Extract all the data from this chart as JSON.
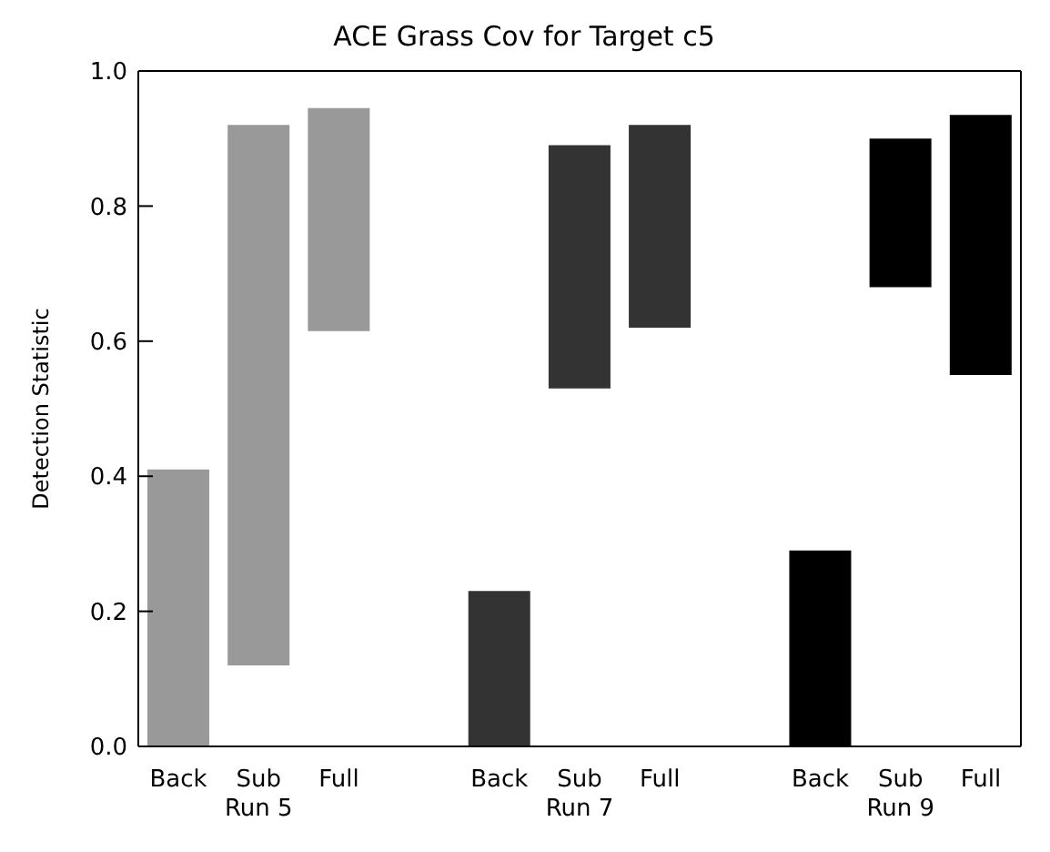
{
  "chart_data": {
    "type": "bar",
    "title": "ACE Grass Cov for Target c5",
    "ylabel": "Detection Statistic",
    "categories": [
      "Back",
      "Sub",
      "Full",
      null,
      "Back",
      "Sub",
      "Full",
      null,
      "Back",
      "Sub",
      "Full"
    ],
    "values": [
      0.41,
      0.8,
      0.33,
      null,
      0.23,
      0.36,
      0.3,
      null,
      0.29,
      0.22,
      0.385
    ],
    "base": [
      0,
      0.12,
      0.615,
      null,
      0,
      0.53,
      0.62,
      null,
      0,
      0.68,
      0.55
    ],
    "colors": [
      "#999999",
      "#999999",
      "#999999",
      null,
      "#333333",
      "#333333",
      "#333333",
      null,
      "#000000",
      "#000000",
      "#000000"
    ],
    "ylim": [
      0,
      1
    ],
    "yticks": [
      {
        "value": 0,
        "label": "0.0"
      },
      {
        "value": 0.2,
        "label": "0.2"
      },
      {
        "value": 0.4,
        "label": "0.4"
      },
      {
        "value": 0.6,
        "label": "0.6"
      },
      {
        "value": 0.8,
        "label": "0.8"
      },
      {
        "value": 1,
        "label": "1.0"
      }
    ],
    "annotations": [
      "Run 5",
      "Run 7",
      "Run 9"
    ],
    "grid": false,
    "legend": false
  }
}
